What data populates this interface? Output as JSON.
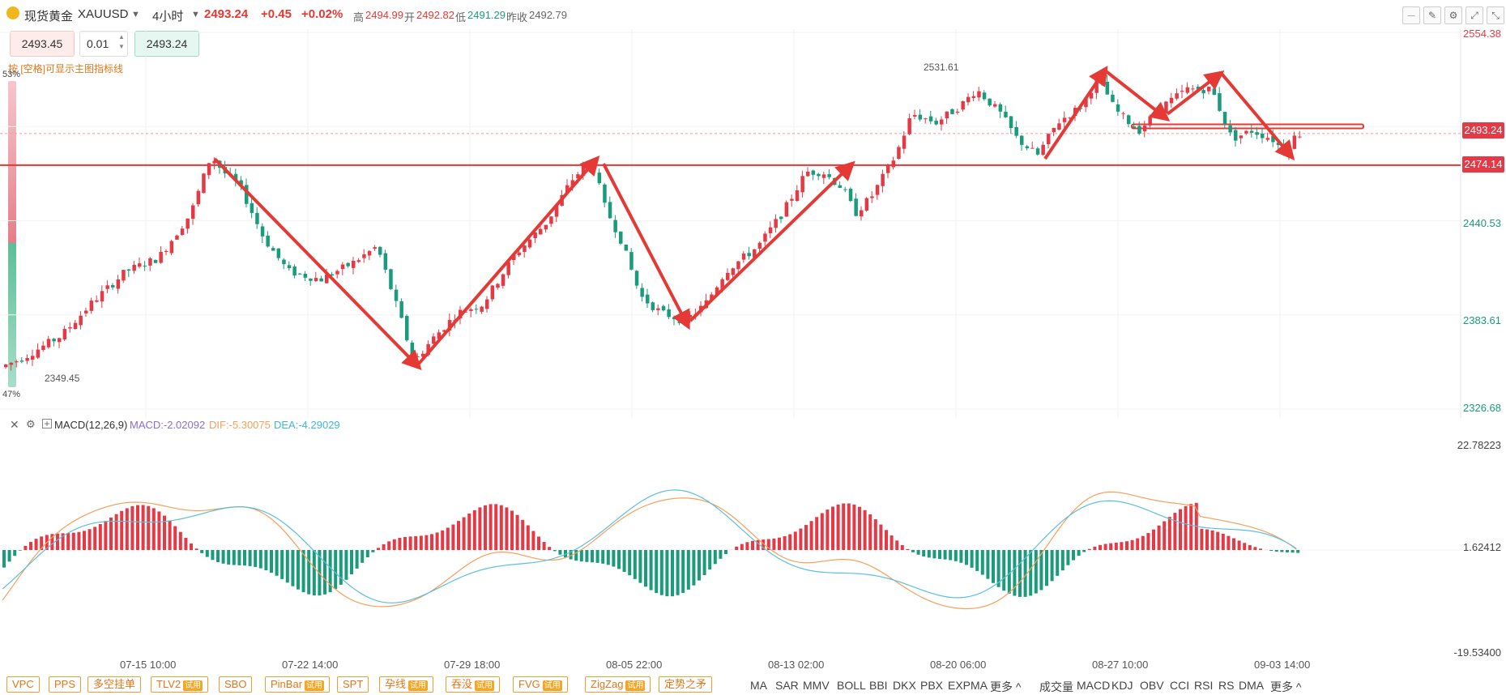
{
  "header": {
    "symbol_name": "现货黄金",
    "symbol_code": "XAUUSD",
    "timeframe": "4小时",
    "last_price": "2493.24",
    "change": "+0.45",
    "change_pct": "+0.02%",
    "high_label": "高",
    "high_value": "2494.99",
    "open_label": "开",
    "open_value": "2492.82",
    "low_label": "低",
    "low_value": "2491.29",
    "prev_close_label": "昨收",
    "prev_close_value": "2492.79"
  },
  "order": {
    "sell_price": "2493.45",
    "lot": "0.01",
    "buy_price": "2493.24"
  },
  "hint": "按 [空格]可显示主图指标线",
  "sentiment": {
    "top": "53%",
    "bottom": "47%",
    "top_value": 53,
    "bottom_value": 47
  },
  "price_axis": {
    "labels": [
      "2554.38",
      "2440.53",
      "2383.61",
      "2326.68"
    ],
    "current_tag": "2493.24",
    "line_tag": "2474.14",
    "high_marker": "2531.61",
    "low_marker": "2349.45"
  },
  "macd": {
    "title": "MACD(12,26,9)",
    "macd_value": "MACD:-2.02092",
    "dif_value": "DIF:-5.30075",
    "dea_value": "DEA:-4.29029",
    "axis_labels": [
      "22.78223",
      "1.62412",
      "-19.53400"
    ]
  },
  "dates": [
    "07-15 10:00",
    "07-22 14:00",
    "07-29 18:00",
    "08-05 22:00",
    "08-13 02:00",
    "08-20 06:00",
    "08-27 10:00",
    "09-03 14:00"
  ],
  "indicator_buttons": [
    {
      "label": "VPC",
      "trial": ""
    },
    {
      "label": "PPS",
      "trial": ""
    },
    {
      "label": "多空挂单",
      "trial": ""
    },
    {
      "label": "TLV2",
      "trial": "试用"
    },
    {
      "label": "SBO",
      "trial": ""
    },
    {
      "label": "PinBar",
      "trial": "试用"
    },
    {
      "label": "SPT",
      "trial": ""
    },
    {
      "label": "孕线",
      "trial": "试用"
    },
    {
      "label": "吞没",
      "trial": "试用"
    },
    {
      "label": "FVG",
      "trial": "试用"
    },
    {
      "label": "ZigZag",
      "trial": "试用"
    },
    {
      "label": "定势之矛",
      "trial": ""
    }
  ],
  "main_indicators": [
    "MA",
    "SAR",
    "MMV",
    "BOLL",
    "BBI",
    "DKX",
    "PBX",
    "EXPMA",
    "更多"
  ],
  "sub_indicators": [
    "成交量",
    "MACD",
    "KDJ",
    "OBV",
    "CCI",
    "RSI",
    "RS",
    "DMA",
    "更多"
  ],
  "colors": {
    "up": "#e53945",
    "down": "#1a9b7c",
    "accent": "#e53935",
    "dif": "#f5a05a",
    "dea": "#5bc0de"
  },
  "chart_data": [
    {
      "type": "candlestick",
      "title": "现货黄金 XAUUSD 4小时",
      "ylim": [
        2326.68,
        2554.38
      ],
      "x": [
        "07-15 10:00",
        "07-22 14:00",
        "07-29 18:00",
        "08-05 22:00",
        "08-13 02:00",
        "08-20 06:00",
        "08-27 10:00",
        "09-03 14:00"
      ],
      "horizontal_lines": [
        2474.14,
        2493.24
      ],
      "swing_points": [
        {
          "label": "2349.45",
          "value": 2349.45
        },
        {
          "label": "2531.61",
          "value": 2531.61
        }
      ]
    },
    {
      "type": "bar",
      "title": "MACD(12,26,9)",
      "ylim": [
        -19.534,
        22.78223
      ],
      "series": [
        {
          "name": "MACD",
          "last": -2.02092
        },
        {
          "name": "DIF",
          "last": -5.30075
        },
        {
          "name": "DEA",
          "last": -4.29029
        }
      ]
    }
  ]
}
